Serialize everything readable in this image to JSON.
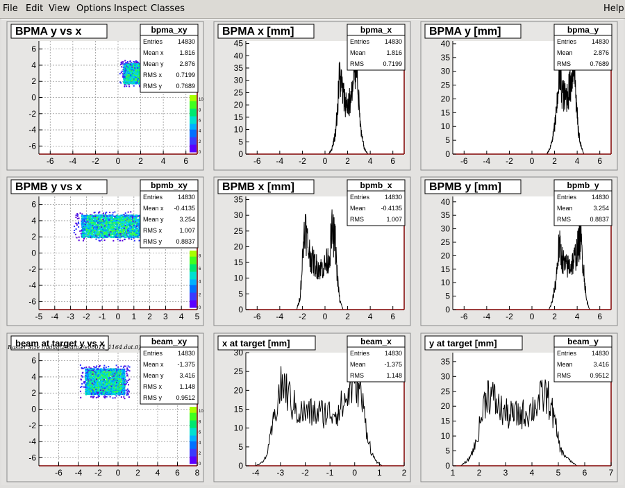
{
  "menu": {
    "file": "File",
    "edit": "Edit",
    "view": "View",
    "options": "Options",
    "inspect": "Inspect",
    "classes": "Classes",
    "help": "Help"
  },
  "caption": "Raster Size (/adaql2/data2/e06014_1164.dat.0)",
  "colors": {
    "frame_fill": "#e7e6e4",
    "plot_bg": "#ffffff",
    "hist_line": "#000000",
    "axis_line": "#800000"
  },
  "chart_data": [
    {
      "type": "heatmap",
      "title": "BPMA y vs x",
      "stats_name": "bpma_xy",
      "stats": [
        [
          "Entries",
          "14830"
        ],
        [
          "Mean x",
          "1.816"
        ],
        [
          "Mean y",
          "2.876"
        ],
        [
          "RMS x",
          "0.7199"
        ],
        [
          "RMS y",
          "0.7689"
        ]
      ],
      "xlim": [
        -7,
        7
      ],
      "ylim": [
        -7,
        7
      ],
      "xticks": [
        -6,
        -4,
        -2,
        0,
        2,
        4,
        6
      ],
      "yticks": [
        -6,
        -4,
        -2,
        0,
        2,
        4,
        6
      ],
      "grid": true,
      "spot": {
        "x": [
          0.5,
          3.2
        ],
        "y": [
          1.7,
          4.2
        ]
      },
      "z_ticks": [
        "0",
        "2",
        "4",
        "6",
        "8",
        "10"
      ],
      "z_ticks_visible": [
        "0",
        "2",
        "4",
        "6",
        "8",
        "10"
      ]
    },
    {
      "type": "bar",
      "title": "BPMA x [mm]",
      "stats_name": "bpma_x",
      "stats": [
        [
          "Entries",
          "14830"
        ],
        [
          "Mean",
          "1.816"
        ],
        [
          "RMS",
          "0.7199"
        ]
      ],
      "xlim": [
        -7,
        7
      ],
      "ylim": [
        0,
        46
      ],
      "xticks": [
        -6,
        -4,
        -2,
        0,
        2,
        4,
        6
      ],
      "yticks": [
        0,
        5,
        10,
        15,
        20,
        25,
        30,
        35,
        40,
        45
      ],
      "profile": [
        [
          0.3,
          0
        ],
        [
          0.6,
          2
        ],
        [
          0.9,
          8
        ],
        [
          1.1,
          18
        ],
        [
          1.3,
          33
        ],
        [
          1.5,
          27
        ],
        [
          1.7,
          22
        ],
        [
          2.0,
          20
        ],
        [
          2.3,
          22
        ],
        [
          2.6,
          30
        ],
        [
          2.8,
          42
        ],
        [
          3.0,
          20
        ],
        [
          3.2,
          8
        ],
        [
          3.5,
          2
        ],
        [
          3.8,
          0
        ]
      ]
    },
    {
      "type": "bar",
      "title": "BPMA y [mm]",
      "stats_name": "bpma_y",
      "stats": [
        [
          "Entries",
          "14830"
        ],
        [
          "Mean",
          "2.876"
        ],
        [
          "RMS",
          "0.7689"
        ]
      ],
      "xlim": [
        -7,
        7
      ],
      "ylim": [
        0,
        41
      ],
      "xticks": [
        -6,
        -4,
        -2,
        0,
        2,
        4,
        6
      ],
      "yticks": [
        0,
        5,
        10,
        15,
        20,
        25,
        30,
        35,
        40
      ],
      "profile": [
        [
          1.3,
          0
        ],
        [
          1.6,
          2
        ],
        [
          1.9,
          7
        ],
        [
          2.2,
          16
        ],
        [
          2.4,
          30
        ],
        [
          2.6,
          24
        ],
        [
          2.9,
          20
        ],
        [
          3.2,
          22
        ],
        [
          3.5,
          27
        ],
        [
          3.7,
          35
        ],
        [
          3.9,
          20
        ],
        [
          4.1,
          8
        ],
        [
          4.4,
          2
        ],
        [
          4.6,
          0
        ]
      ]
    },
    {
      "type": "heatmap",
      "title": "BPMB y vs x",
      "stats_name": "bpmb_xy",
      "stats": [
        [
          "Entries",
          "14830"
        ],
        [
          "Mean x",
          "-0.4135"
        ],
        [
          "Mean y",
          "3.254"
        ],
        [
          "RMS x",
          "1.007"
        ],
        [
          "RMS y",
          "0.8837"
        ]
      ],
      "xlim": [
        -5,
        5
      ],
      "ylim": [
        -7,
        7
      ],
      "xticks": [
        -5,
        -4,
        -3,
        -2,
        -1,
        0,
        1,
        2,
        3,
        4,
        5
      ],
      "yticks": [
        -6,
        -4,
        -2,
        0,
        2,
        4,
        6
      ],
      "grid": true,
      "spot": {
        "x": [
          -2.3,
          1.5
        ],
        "y": [
          1.9,
          4.7
        ]
      },
      "z_ticks": [
        "0",
        "2",
        "4",
        "6",
        "8"
      ],
      "z_ticks_visible": [
        "0",
        "2",
        "4",
        "6",
        "8"
      ]
    },
    {
      "type": "bar",
      "title": "BPMB x [mm]",
      "stats_name": "bpmb_x",
      "stats": [
        [
          "Entries",
          "14830"
        ],
        [
          "Mean",
          "-0.4135"
        ],
        [
          "RMS",
          "1.007"
        ]
      ],
      "xlim": [
        -7,
        7
      ],
      "ylim": [
        0,
        36
      ],
      "xticks": [
        -6,
        -4,
        -2,
        0,
        2,
        4,
        6
      ],
      "yticks": [
        0,
        5,
        10,
        15,
        20,
        25,
        30,
        35
      ],
      "profile": [
        [
          -2.5,
          0
        ],
        [
          -2.2,
          4
        ],
        [
          -2.0,
          15
        ],
        [
          -1.8,
          28
        ],
        [
          -1.5,
          20
        ],
        [
          -1.2,
          16
        ],
        [
          -0.8,
          14
        ],
        [
          -0.4,
          13
        ],
        [
          0.0,
          14
        ],
        [
          0.4,
          17
        ],
        [
          0.6,
          25
        ],
        [
          0.9,
          22
        ],
        [
          1.1,
          10
        ],
        [
          1.3,
          3
        ],
        [
          1.6,
          0
        ]
      ]
    },
    {
      "type": "bar",
      "title": "BPMB y [mm]",
      "stats_name": "bpmb_y",
      "stats": [
        [
          "Entries",
          "14830"
        ],
        [
          "Mean",
          "3.254"
        ],
        [
          "RMS",
          "0.8837"
        ]
      ],
      "xlim": [
        -7,
        7
      ],
      "ylim": [
        0,
        42
      ],
      "xticks": [
        -6,
        -4,
        -2,
        0,
        2,
        4,
        6
      ],
      "yticks": [
        0,
        5,
        10,
        15,
        20,
        25,
        30,
        35,
        40
      ],
      "profile": [
        [
          1.5,
          0
        ],
        [
          1.8,
          3
        ],
        [
          2.1,
          10
        ],
        [
          2.4,
          24
        ],
        [
          2.6,
          20
        ],
        [
          2.9,
          16
        ],
        [
          3.3,
          16
        ],
        [
          3.7,
          18
        ],
        [
          4.0,
          22
        ],
        [
          4.3,
          27
        ],
        [
          4.6,
          14
        ],
        [
          4.8,
          4
        ],
        [
          5.1,
          0
        ]
      ]
    },
    {
      "type": "heatmap",
      "title": "beam at target y vs x",
      "stats_name": "beam_xy",
      "stats": [
        [
          "Entries",
          "14830"
        ],
        [
          "Mean x",
          "-1.375"
        ],
        [
          "Mean y",
          "3.416"
        ],
        [
          "RMS x",
          "1.148"
        ],
        [
          "RMS y",
          "0.9512"
        ]
      ],
      "xlim": [
        -8,
        8
      ],
      "ylim": [
        -7,
        7
      ],
      "xticks": [
        -6,
        -4,
        -2,
        0,
        2,
        4,
        6,
        8
      ],
      "yticks": [
        -6,
        -4,
        -2,
        0,
        2,
        4,
        6
      ],
      "grid": true,
      "spot": {
        "x": [
          -3.3,
          0.7
        ],
        "y": [
          1.8,
          5.0
        ]
      },
      "z_ticks": [
        "0",
        "2",
        "4",
        "6",
        "8",
        "10"
      ],
      "z_ticks_visible": [
        "0",
        "2",
        "4",
        "6",
        "8",
        "10"
      ]
    },
    {
      "type": "bar",
      "title": "x at target [mm]",
      "stats_name": "beam_x",
      "stats": [
        [
          "Entries",
          "14830"
        ],
        [
          "Mean",
          "-1.375"
        ],
        [
          "RMS",
          "1.148"
        ]
      ],
      "xlim": [
        -4.4,
        2
      ],
      "ylim": [
        0,
        30
      ],
      "xticks": [
        -4,
        -3,
        -2,
        -1,
        0,
        1,
        2
      ],
      "yticks": [
        0,
        5,
        10,
        15,
        20,
        25,
        30
      ],
      "profile": [
        [
          -4.0,
          0
        ],
        [
          -3.7,
          1
        ],
        [
          -3.5,
          4
        ],
        [
          -3.3,
          11
        ],
        [
          -3.1,
          18
        ],
        [
          -2.9,
          22
        ],
        [
          -2.7,
          19
        ],
        [
          -2.5,
          16
        ],
        [
          -2.2,
          14
        ],
        [
          -1.8,
          14
        ],
        [
          -1.4,
          14
        ],
        [
          -1.0,
          14
        ],
        [
          -0.6,
          15
        ],
        [
          -0.3,
          18
        ],
        [
          -0.1,
          22
        ],
        [
          0.1,
          23
        ],
        [
          0.3,
          17
        ],
        [
          0.5,
          9
        ],
        [
          0.7,
          3
        ],
        [
          0.9,
          1
        ],
        [
          1.1,
          0
        ]
      ]
    },
    {
      "type": "bar",
      "title": "y at target [mm]",
      "stats_name": "beam_y",
      "stats": [
        [
          "Entries",
          "14830"
        ],
        [
          "Mean",
          "3.416"
        ],
        [
          "RMS",
          "0.9512"
        ]
      ],
      "xlim": [
        1,
        7
      ],
      "ylim": [
        0,
        38
      ],
      "xticks": [
        1,
        2,
        3,
        4,
        5,
        6,
        7
      ],
      "yticks": [
        0,
        5,
        10,
        15,
        20,
        25,
        30,
        35
      ],
      "profile": [
        [
          1.3,
          0
        ],
        [
          1.6,
          2
        ],
        [
          1.9,
          8
        ],
        [
          2.1,
          17
        ],
        [
          2.3,
          25
        ],
        [
          2.5,
          23
        ],
        [
          2.8,
          19
        ],
        [
          3.1,
          17
        ],
        [
          3.5,
          17
        ],
        [
          3.9,
          18
        ],
        [
          4.2,
          21
        ],
        [
          4.5,
          24
        ],
        [
          4.7,
          21
        ],
        [
          4.9,
          13
        ],
        [
          5.1,
          5
        ],
        [
          5.4,
          2
        ],
        [
          5.7,
          0
        ]
      ]
    }
  ]
}
